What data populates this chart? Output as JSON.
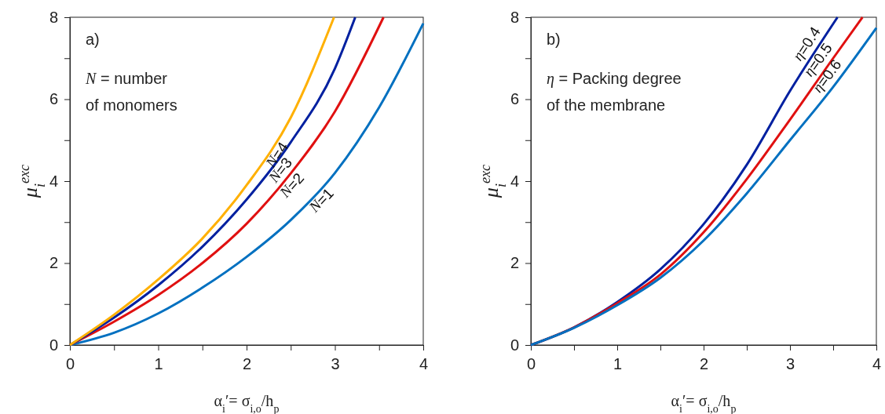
{
  "chart_data": [
    {
      "type": "line",
      "xlabel": "α$_{i}$′= σ$_{i,o}$/h$_{p}$",
      "ylabel": "μ$_{i}$$^{exc}$",
      "annotations": [
        "a)",
        "N = number of monomers"
      ],
      "xlim": [
        0,
        4
      ],
      "xticks": [
        0,
        {
          "value": 0.5,
          "label": null
        },
        1,
        {
          "value": 1.5,
          "label": null
        },
        2,
        {
          "value": 2.5,
          "label": null
        },
        3,
        {
          "value": 3.5,
          "label": null
        },
        4
      ],
      "ylim": [
        0,
        8
      ],
      "yticks": [
        0,
        {
          "value": 1,
          "label": null
        },
        2,
        {
          "value": 3,
          "label": null
        },
        4,
        {
          "value": 5,
          "label": null
        },
        6,
        {
          "value": 7,
          "label": null
        },
        8
      ],
      "series": [
        {
          "name": "N=1",
          "color": "#0070c0",
          "x": [
            0,
            0.5,
            1,
            1.5,
            2,
            2.5,
            3,
            3.5,
            4
          ],
          "values": [
            0,
            0.3,
            0.77,
            1.4,
            2.15,
            3.05,
            4.2,
            5.8,
            7.85
          ]
        },
        {
          "name": "N=2",
          "color": "#e01010",
          "x": [
            0,
            0.5,
            1,
            1.5,
            2,
            2.5,
            3,
            3.55
          ],
          "values": [
            0,
            0.57,
            1.22,
            2.0,
            2.96,
            4.19,
            5.7,
            8
          ]
        },
        {
          "name": "N=3",
          "color": "#0020a0",
          "x": [
            0,
            0.5,
            1,
            1.5,
            2,
            2.5,
            3,
            3.23
          ],
          "values": [
            0,
            0.67,
            1.46,
            2.4,
            3.55,
            4.95,
            6.75,
            8
          ]
        },
        {
          "name": "N=4",
          "color": "#ffb000",
          "x": [
            0,
            0.5,
            1,
            1.5,
            2,
            2.5,
            2.99
          ],
          "values": [
            0,
            0.74,
            1.6,
            2.6,
            3.9,
            5.55,
            8
          ]
        }
      ]
    },
    {
      "type": "line",
      "xlabel": "α$_{i}$′= σ$_{i,o}$/h$_{p}$",
      "ylabel": "μ$_{i}$$^{exc}$",
      "annotations": [
        "b)",
        "η = Packing degree of the membrane"
      ],
      "xlim": [
        0,
        4
      ],
      "xticks": [
        0,
        {
          "value": 0.5,
          "label": null
        },
        1,
        {
          "value": 1.5,
          "label": null
        },
        2,
        {
          "value": 2.5,
          "label": null
        },
        3,
        {
          "value": 3.5,
          "label": null
        },
        4
      ],
      "ylim": [
        0,
        8
      ],
      "yticks": [
        0,
        {
          "value": 1,
          "label": null
        },
        2,
        {
          "value": 3,
          "label": null
        },
        4,
        {
          "value": 5,
          "label": null
        },
        6,
        {
          "value": 7,
          "label": null
        },
        8
      ],
      "series": [
        {
          "name": "η=0.4",
          "color": "#0020a0",
          "x": [
            0,
            0.5,
            1,
            1.5,
            2,
            2.5,
            3,
            3.55
          ],
          "values": [
            0,
            0.43,
            1.05,
            1.85,
            2.95,
            4.4,
            6.2,
            8
          ]
        },
        {
          "name": "η=0.5",
          "color": "#e01010",
          "x": [
            0,
            0.5,
            1,
            1.5,
            2,
            2.5,
            3,
            3.5,
            3.84
          ],
          "values": [
            0,
            0.43,
            1.02,
            1.72,
            2.75,
            4.05,
            5.5,
            7.0,
            8
          ]
        },
        {
          "name": "η=0.6",
          "color": "#0070c0",
          "x": [
            0,
            0.5,
            1,
            1.5,
            2,
            2.5,
            3,
            3.5,
            4
          ],
          "values": [
            0,
            0.42,
            0.97,
            1.64,
            2.55,
            3.7,
            5.0,
            6.3,
            7.74
          ]
        }
      ]
    }
  ]
}
